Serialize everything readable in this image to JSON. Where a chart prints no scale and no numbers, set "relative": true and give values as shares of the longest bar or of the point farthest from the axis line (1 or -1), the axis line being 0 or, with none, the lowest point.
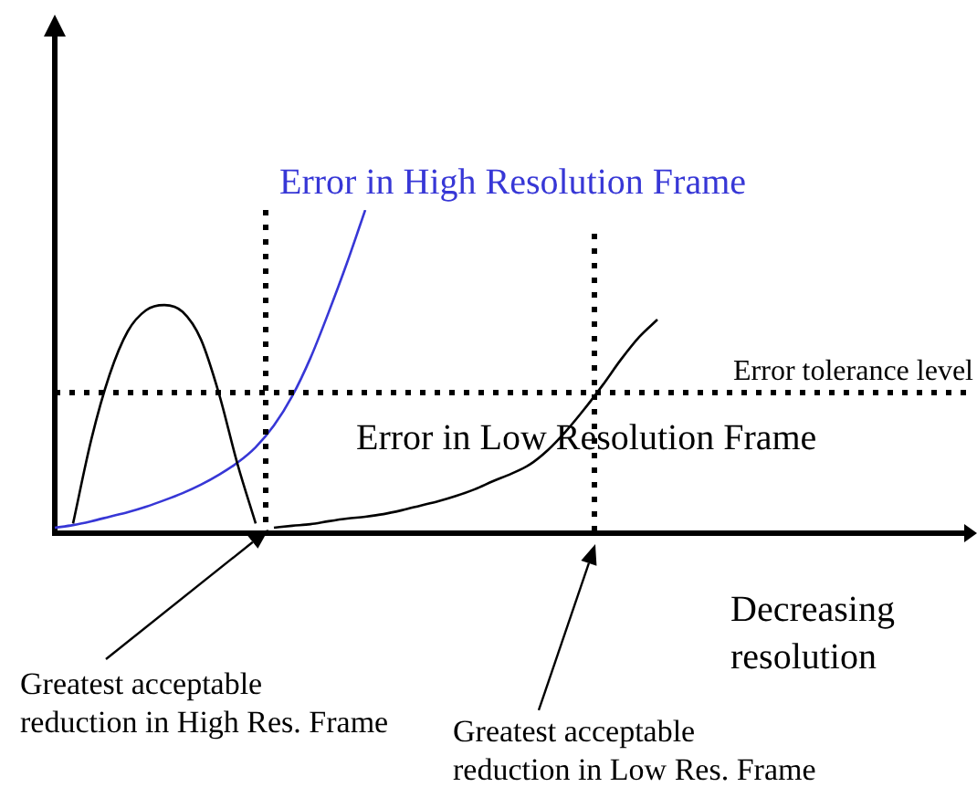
{
  "chart_data": {
    "type": "line",
    "relative": true,
    "legend": false,
    "marker": "none",
    "xlabel": "Decreasing resolution",
    "categories": [
      null,
      null,
      null,
      null,
      null,
      null,
      null,
      null,
      null,
      null,
      null,
      null,
      null,
      null,
      null,
      null,
      null,
      null,
      null,
      null,
      null,
      null,
      null,
      null,
      null,
      null,
      null,
      null,
      null,
      null,
      null,
      null,
      null,
      null,
      null,
      null,
      null,
      null,
      null,
      null,
      null,
      null,
      null,
      null,
      null,
      null,
      null,
      null,
      null,
      null,
      null
    ],
    "series": [
      {
        "color": "#000000",
        "values": [
          null,
          0.03,
          0.29,
          0.49,
          0.625,
          0.69,
          0.706,
          0.685,
          0.6,
          0.43,
          0.215,
          0.03,
          null,
          null,
          null,
          null,
          null,
          null,
          null,
          null,
          null,
          null,
          null,
          null,
          null,
          null,
          null,
          null,
          null,
          null,
          null,
          null,
          null,
          null,
          null,
          null,
          null,
          null,
          null,
          null,
          null,
          null,
          null,
          null,
          null,
          null,
          null,
          null,
          null,
          null,
          null
        ]
      },
      {
        "name": "Error in High Resolution Frame",
        "color": "#3737d6",
        "values": [
          0.017,
          0.025,
          0.037,
          0.051,
          0.065,
          0.082,
          0.102,
          0.124,
          0.15,
          0.181,
          0.218,
          0.266,
          0.333,
          0.424,
          0.542,
          0.684,
          0.836,
          1,
          null,
          null,
          null,
          null,
          null,
          null,
          null,
          null,
          null,
          null,
          null,
          null,
          null,
          null,
          null,
          null,
          null,
          null,
          null,
          null,
          null,
          null,
          null,
          null,
          null,
          null,
          null,
          null,
          null,
          null,
          null,
          null,
          null
        ]
      },
      {
        "name": "Error in Low Resolution Frame",
        "color": "#000000",
        "values": [
          null,
          null,
          null,
          null,
          null,
          null,
          null,
          null,
          null,
          null,
          null,
          null,
          0.017,
          0.023,
          0.028,
          0.037,
          0.045,
          0.051,
          0.059,
          0.071,
          0.085,
          0.099,
          0.116,
          0.136,
          0.161,
          0.184,
          0.212,
          0.257,
          0.316,
          0.384,
          0.458,
          0.537,
          0.607,
          0.661,
          null,
          null,
          null,
          null,
          null,
          null,
          null,
          null,
          null,
          null,
          null,
          null,
          null,
          null,
          null,
          null,
          null
        ]
      }
    ],
    "ref_lines": [
      {
        "axis": "y",
        "value": 0.435,
        "label": "Error tolerance level",
        "line_style": "dotted"
      }
    ],
    "annotations": [
      "Greatest acceptable\nreduction in High Res. Frame",
      "Greatest acceptable\nreduction in Low Res. Frame"
    ]
  }
}
